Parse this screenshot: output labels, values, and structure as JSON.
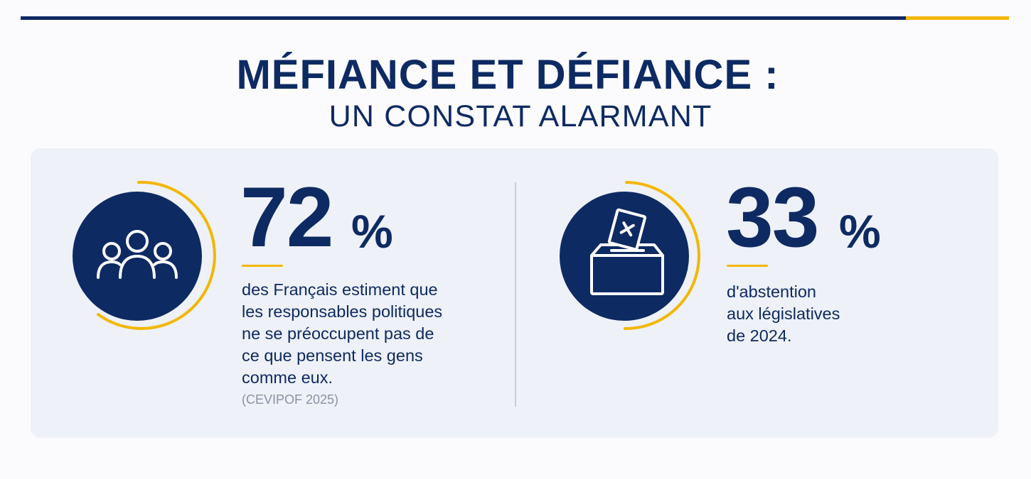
{
  "colors": {
    "navy": "#0e2a63",
    "gold": "#f2b705",
    "card": "#eef1f7",
    "muted": "#8a92a3"
  },
  "header": {
    "title": "MÉFIANCE ET DÉFIANCE :",
    "subtitle": "UN CONSTAT ALARMANT"
  },
  "stats": [
    {
      "icon": "people-group-icon",
      "number": "72",
      "unit": "%",
      "lines": [
        "des Français estiment que",
        "les responsables politiques",
        "ne se préoccupent pas de",
        "ce que pensent les gens",
        "comme eux."
      ],
      "source": "(CEVIPOF 2025)"
    },
    {
      "icon": "ballot-box-icon",
      "number": "33",
      "unit": "%",
      "lines": [
        "d'abstention",
        "aux législatives",
        "de 2024."
      ]
    }
  ]
}
